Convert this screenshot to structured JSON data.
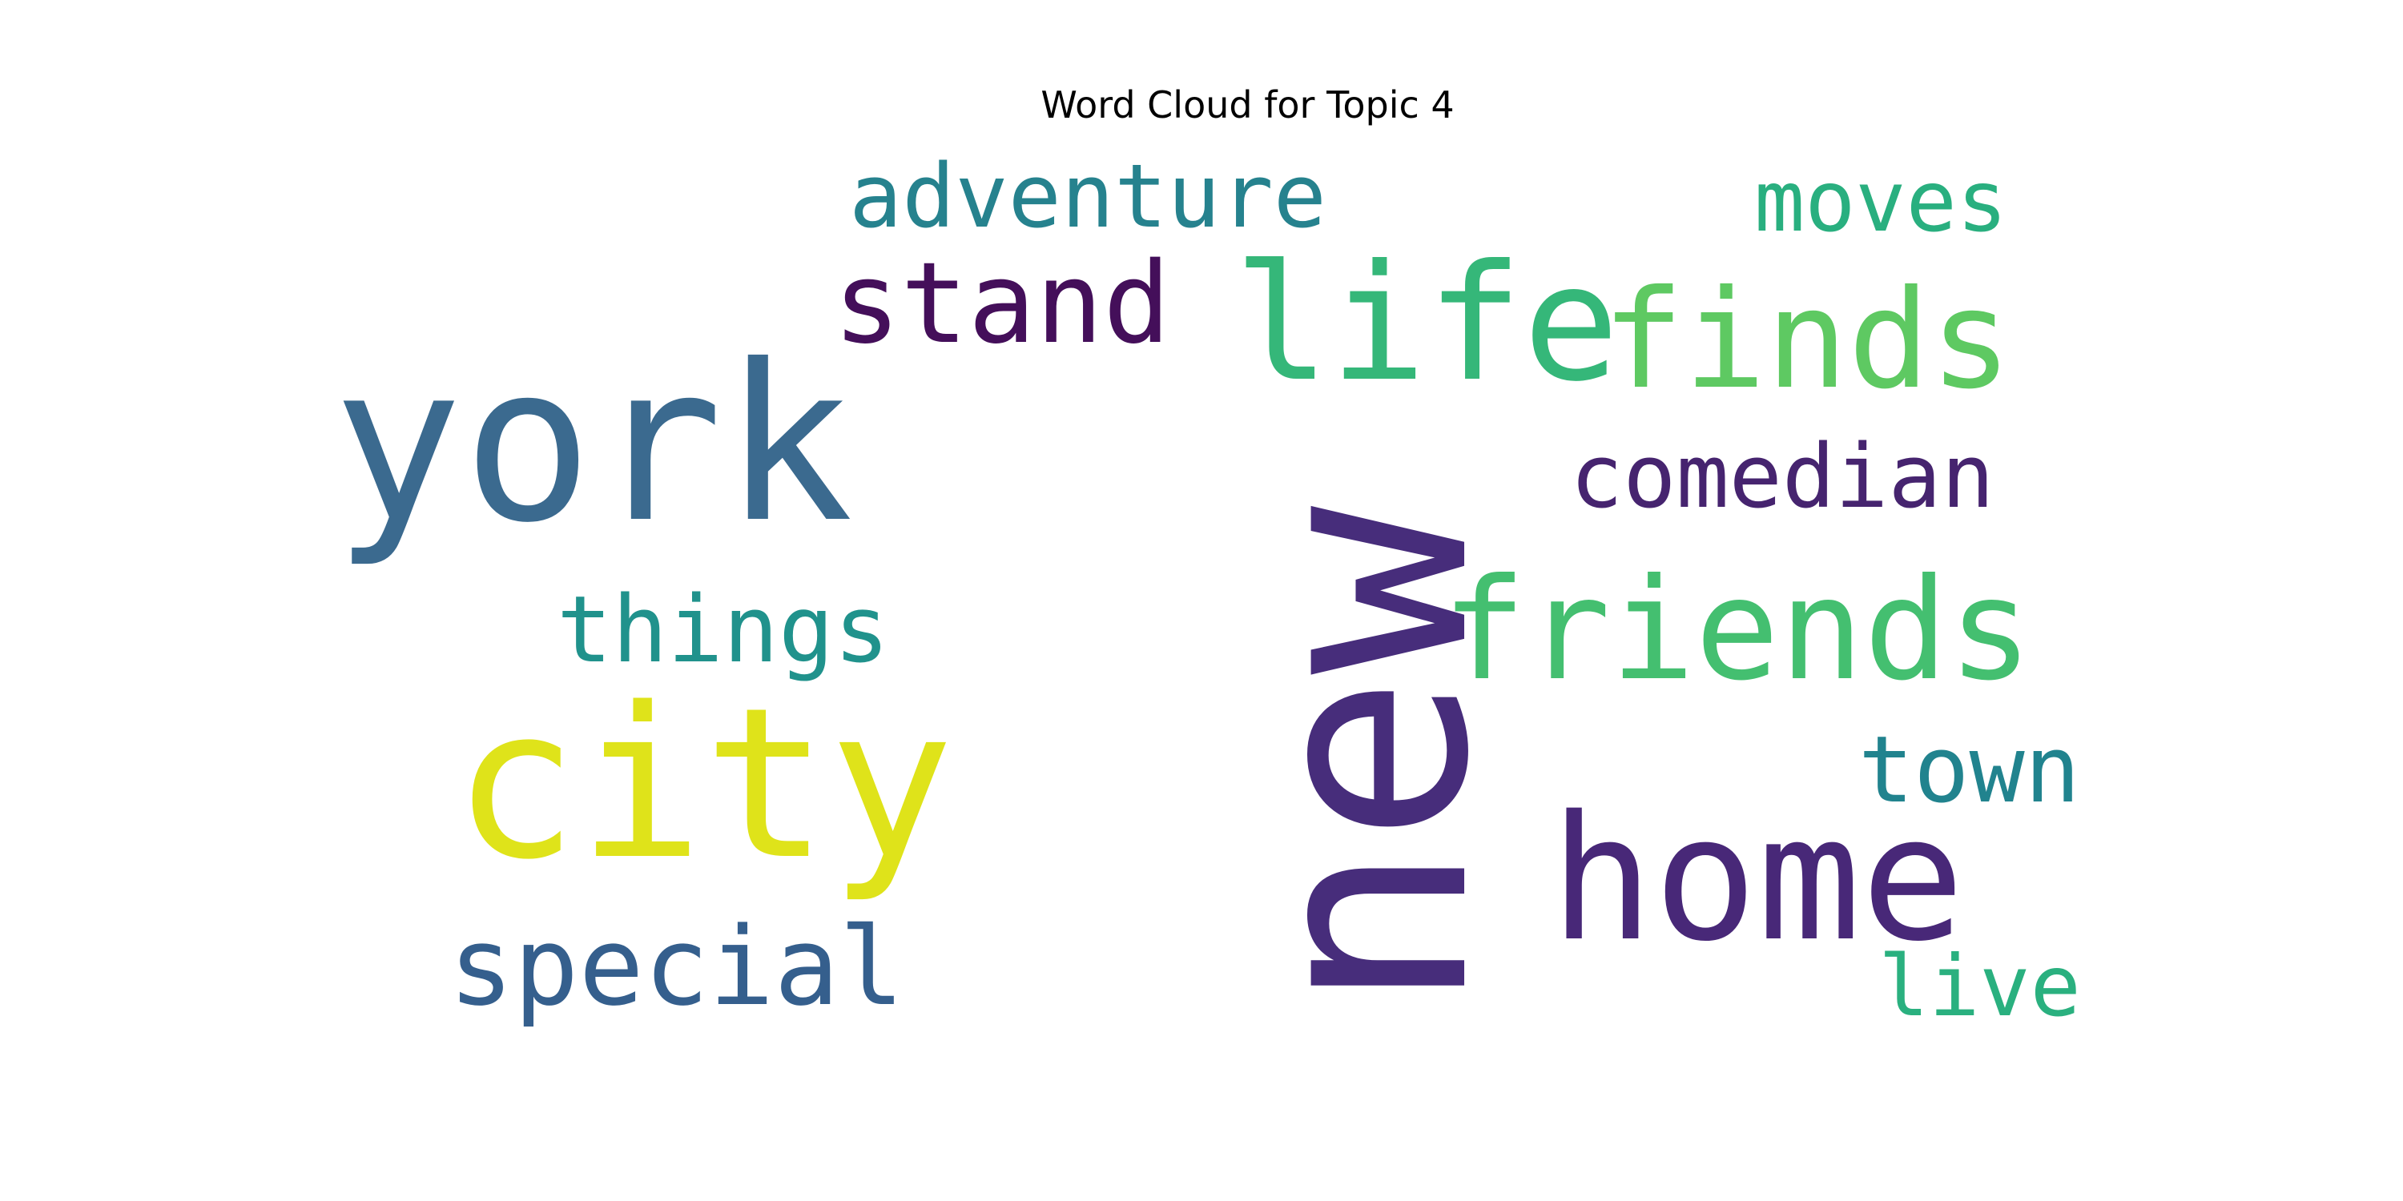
{
  "title": "Word Cloud for Topic 4",
  "words": {
    "new": {
      "text": "new",
      "color": "#472d7b"
    },
    "york": {
      "text": "york",
      "color": "#3b6a8f"
    },
    "city": {
      "text": "city",
      "color": "#dfe31a"
    },
    "life": {
      "text": "life",
      "color": "#35b779"
    },
    "finds": {
      "text": "finds",
      "color": "#5ec962"
    },
    "home": {
      "text": "home",
      "color": "#482878"
    },
    "friends": {
      "text": "friends",
      "color": "#44bf70"
    },
    "stand": {
      "text": "stand",
      "color": "#440f5a"
    },
    "adventure": {
      "text": "adventure",
      "color": "#26828e"
    },
    "moves": {
      "text": "moves",
      "color": "#29af7f"
    },
    "comedian": {
      "text": "comedian",
      "color": "#46246f"
    },
    "things": {
      "text": "things",
      "color": "#20928c"
    },
    "town": {
      "text": "town",
      "color": "#21838e"
    },
    "special": {
      "text": "special",
      "color": "#355f8d"
    },
    "live": {
      "text": "live",
      "color": "#2ab07f"
    }
  }
}
